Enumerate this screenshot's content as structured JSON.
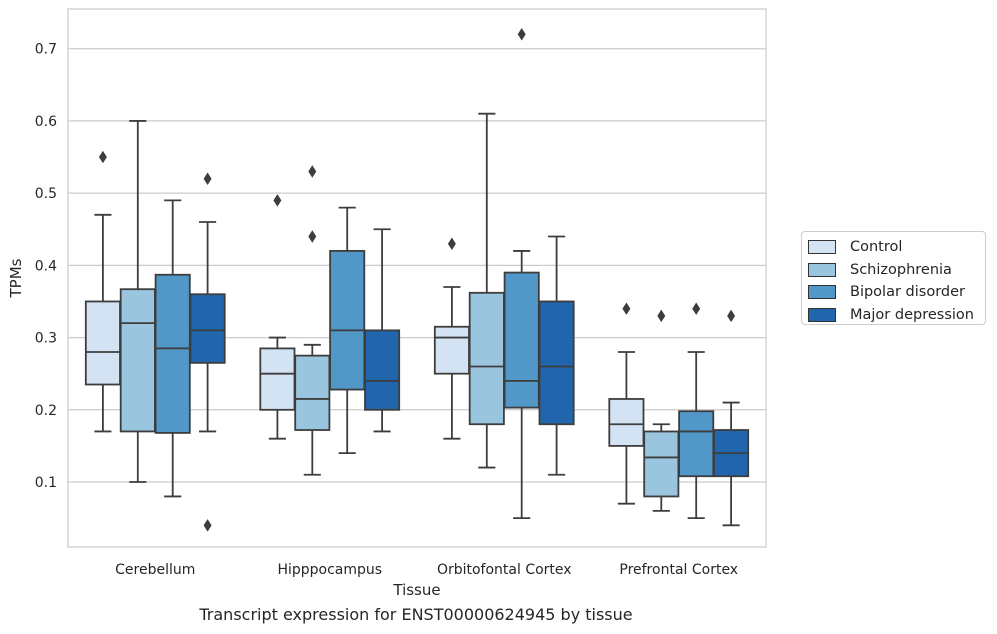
{
  "chart_data": {
    "type": "boxplot",
    "title": "",
    "caption": "Transcript expression for ENST00000624945 by tissue",
    "xlabel": "Tissue",
    "ylabel": "TPMs",
    "ylim": [
      0.01,
      0.755
    ],
    "yticks": [
      "0.1",
      "0.2",
      "0.3",
      "0.4",
      "0.5",
      "0.6",
      "0.7"
    ],
    "ytick_values": [
      0.1,
      0.2,
      0.3,
      0.4,
      0.5,
      0.6,
      0.7
    ],
    "grid": "horizontal",
    "legend_position": "right",
    "categories": [
      "Cerebellum",
      "Hipppocampus",
      "Orbitofontal Cortex",
      "Prefrontal Cortex"
    ],
    "series": [
      {
        "name": "Control",
        "color": "#d4e3f3",
        "boxes": [
          {
            "whislo": 0.17,
            "q1": 0.235,
            "median": 0.28,
            "q3": 0.35,
            "whishi": 0.47,
            "fliers": [
              0.55
            ]
          },
          {
            "whislo": 0.16,
            "q1": 0.2,
            "median": 0.25,
            "q3": 0.285,
            "whishi": 0.3,
            "fliers": [
              0.49
            ]
          },
          {
            "whislo": 0.16,
            "q1": 0.25,
            "median": 0.3,
            "q3": 0.315,
            "whishi": 0.37,
            "fliers": [
              0.43
            ]
          },
          {
            "whislo": 0.07,
            "q1": 0.15,
            "median": 0.18,
            "q3": 0.215,
            "whishi": 0.28,
            "fliers": [
              0.34
            ]
          }
        ]
      },
      {
        "name": "Schizophrenia",
        "color": "#9ac5df",
        "boxes": [
          {
            "whislo": 0.1,
            "q1": 0.17,
            "median": 0.32,
            "q3": 0.367,
            "whishi": 0.6,
            "fliers": []
          },
          {
            "whislo": 0.11,
            "q1": 0.172,
            "median": 0.215,
            "q3": 0.275,
            "whishi": 0.29,
            "fliers": [
              0.44,
              0.53
            ]
          },
          {
            "whislo": 0.12,
            "q1": 0.18,
            "median": 0.26,
            "q3": 0.362,
            "whishi": 0.61,
            "fliers": []
          },
          {
            "whislo": 0.06,
            "q1": 0.08,
            "median": 0.134,
            "q3": 0.17,
            "whishi": 0.18,
            "fliers": [
              0.33
            ]
          }
        ]
      },
      {
        "name": "Bipolar disorder",
        "color": "#5198c8",
        "boxes": [
          {
            "whislo": 0.08,
            "q1": 0.168,
            "median": 0.285,
            "q3": 0.387,
            "whishi": 0.49,
            "fliers": []
          },
          {
            "whislo": 0.14,
            "q1": 0.228,
            "median": 0.31,
            "q3": 0.42,
            "whishi": 0.48,
            "fliers": []
          },
          {
            "whislo": 0.05,
            "q1": 0.203,
            "median": 0.24,
            "q3": 0.39,
            "whishi": 0.42,
            "fliers": [
              0.72
            ]
          },
          {
            "whislo": 0.05,
            "q1": 0.108,
            "median": 0.17,
            "q3": 0.198,
            "whishi": 0.28,
            "fliers": [
              0.34
            ]
          }
        ]
      },
      {
        "name": "Major depression",
        "color": "#2166ac",
        "boxes": [
          {
            "whislo": 0.17,
            "q1": 0.265,
            "median": 0.31,
            "q3": 0.36,
            "whishi": 0.46,
            "fliers": [
              0.52,
              0.04
            ]
          },
          {
            "whislo": 0.17,
            "q1": 0.2,
            "median": 0.24,
            "q3": 0.31,
            "whishi": 0.45,
            "fliers": []
          },
          {
            "whislo": 0.11,
            "q1": 0.18,
            "median": 0.26,
            "q3": 0.35,
            "whishi": 0.44,
            "fliers": []
          },
          {
            "whislo": 0.04,
            "q1": 0.108,
            "median": 0.14,
            "q3": 0.172,
            "whishi": 0.21,
            "fliers": [
              0.33
            ]
          }
        ]
      }
    ]
  }
}
